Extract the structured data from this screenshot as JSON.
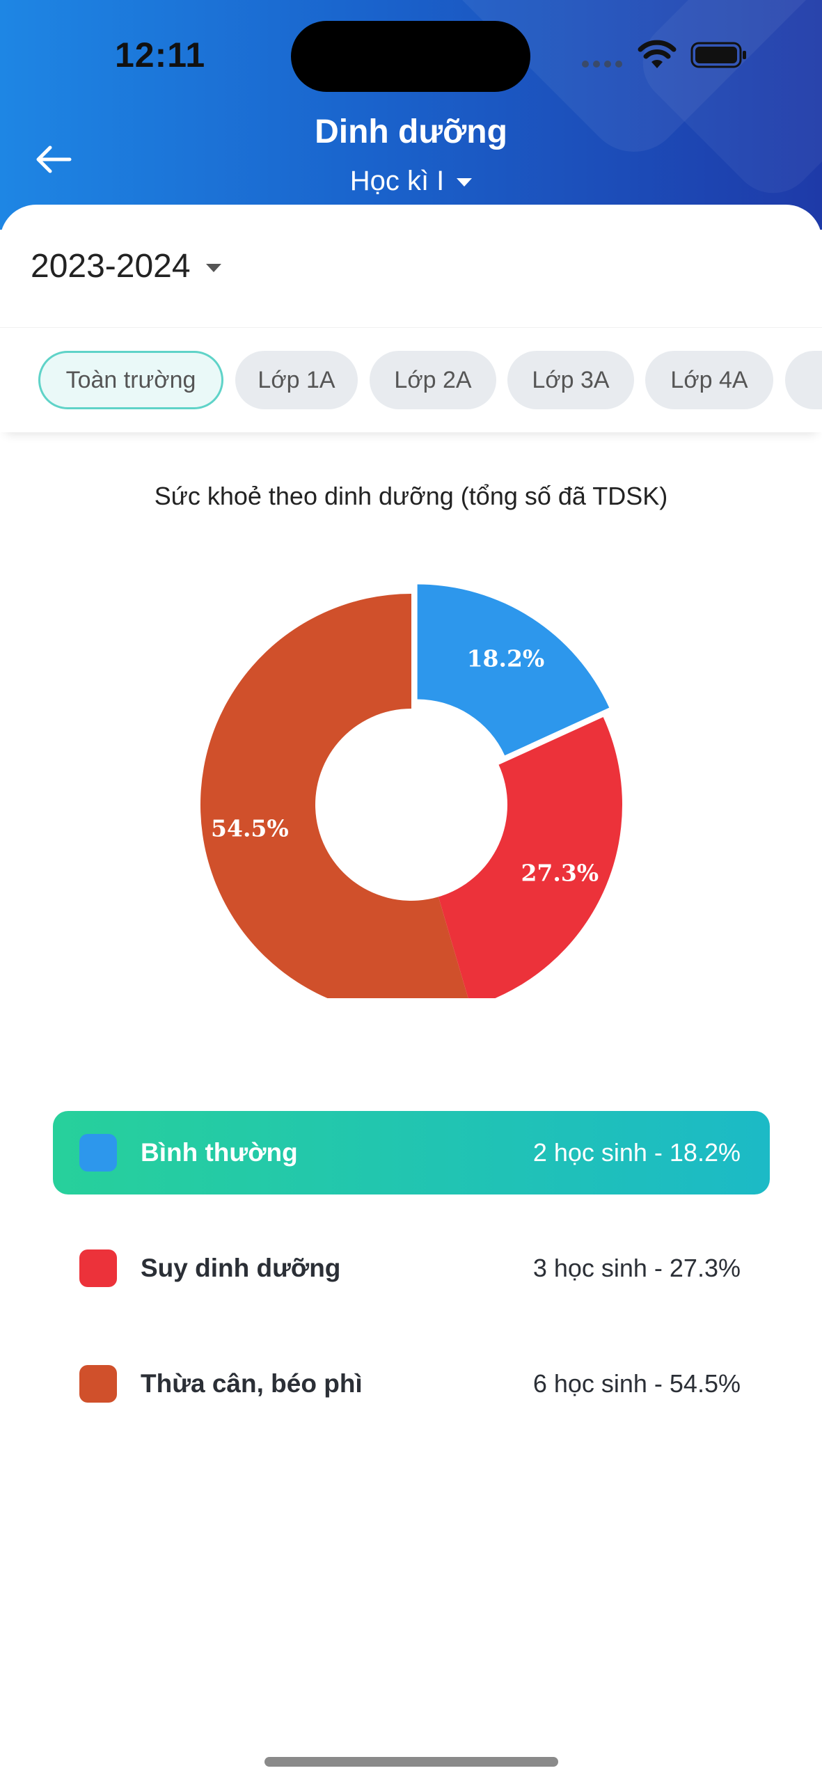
{
  "status_bar": {
    "time": "12:11"
  },
  "header": {
    "title": "Dinh dưỡng",
    "semester": "Học kì I"
  },
  "year_selector": {
    "value": "2023-2024"
  },
  "tabs": [
    {
      "label": "Toàn trường",
      "active": true
    },
    {
      "label": "Lớp 1A",
      "active": false
    },
    {
      "label": "Lớp 2A",
      "active": false
    },
    {
      "label": "Lớp 3A",
      "active": false
    },
    {
      "label": "Lớp 4A",
      "active": false
    }
  ],
  "colors": {
    "normal": "#2d97ec",
    "malnutrition": "#ec323a",
    "overweight": "#d0502b",
    "accent": "#1cbac6"
  },
  "chart_data": {
    "type": "pie",
    "title": "Sức khoẻ theo dinh dưỡng (tổng số đã TDSK)",
    "categories": [
      "Bình thường",
      "Suy dinh dưỡng",
      "Thừa cân, béo phì"
    ],
    "values": [
      2,
      3,
      6
    ],
    "labels": [
      "18.2%",
      "27.3%",
      "54.5%"
    ],
    "colors": [
      "#2d97ec",
      "#ec323a",
      "#d0502b"
    ],
    "highlighted_index": 0
  },
  "legend": [
    {
      "name": "Bình thường",
      "value": "2 học sinh - 18.2%",
      "active": true
    },
    {
      "name": "Suy dinh dưỡng",
      "value": "3 học sinh - 27.3%",
      "active": false
    },
    {
      "name": "Thừa cân, béo phì",
      "value": "6 học sinh - 54.5%",
      "active": false
    }
  ]
}
